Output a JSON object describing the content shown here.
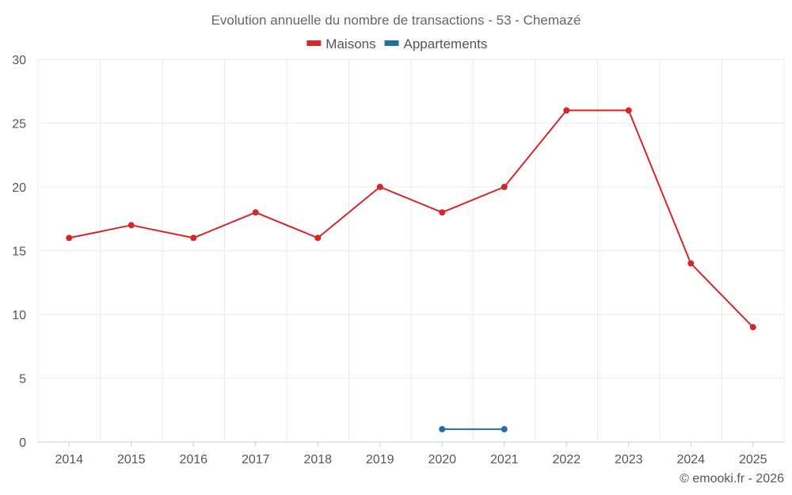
{
  "chart_data": {
    "type": "line",
    "title": "Evolution annuelle du nombre de transactions - 53 - Chemazé",
    "categories": [
      "2014",
      "2015",
      "2016",
      "2017",
      "2018",
      "2019",
      "2020",
      "2021",
      "2022",
      "2023",
      "2024",
      "2025"
    ],
    "series": [
      {
        "name": "Maisons",
        "color": "#d62728",
        "values": [
          16,
          17,
          16,
          18,
          16,
          20,
          18,
          20,
          26,
          26,
          14,
          9
        ]
      },
      {
        "name": "Appartements",
        "color": "#1f6fa5",
        "values": [
          null,
          null,
          null,
          null,
          null,
          null,
          1,
          1,
          null,
          null,
          null,
          null
        ]
      }
    ],
    "ylim": [
      0,
      30
    ],
    "yticks": [
      0,
      5,
      10,
      15,
      20,
      25,
      30
    ],
    "xlabel": "",
    "ylabel": "",
    "grid": true,
    "legend": "top-center"
  },
  "credit": "© emooki.fr - 2026"
}
